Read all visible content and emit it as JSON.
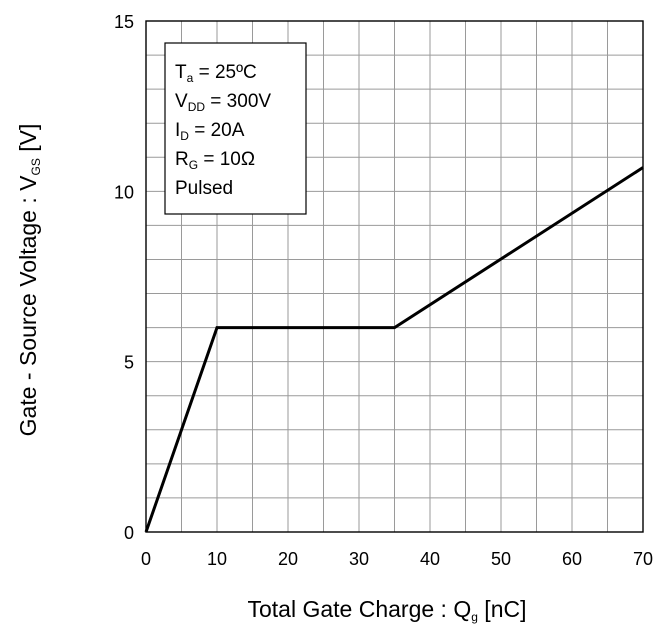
{
  "chart_data": {
    "type": "line",
    "xlabel": {
      "main": "Total Gate Charge : Q",
      "sub": "g",
      "unit": " [nC]"
    },
    "ylabel": {
      "main": "Gate - Source Voltage : V",
      "sub": "GS",
      "unit": " [V]"
    },
    "xlim": [
      0,
      70
    ],
    "ylim": [
      0,
      15
    ],
    "xticks": [
      0,
      10,
      20,
      30,
      40,
      50,
      60,
      70
    ],
    "yticks": [
      0,
      5,
      10,
      15
    ],
    "x_minor_step": 5,
    "y_minor_step": 1,
    "grid": true,
    "legend_placement": "top-left",
    "conditions": [
      {
        "main": "T",
        "sub": "a",
        "rest": " = 25ºC"
      },
      {
        "main": "V",
        "sub": "DD",
        "rest": " = 300V"
      },
      {
        "main": "I",
        "sub": "D",
        "rest": " = 20A"
      },
      {
        "main": "R",
        "sub": "G",
        "rest": " = 10Ω"
      },
      {
        "main": "Pulsed",
        "sub": "",
        "rest": ""
      }
    ],
    "series": [
      {
        "x": [
          0,
          10,
          35,
          70
        ],
        "y": [
          0,
          6,
          6,
          10.7
        ]
      }
    ]
  },
  "colors": {
    "line": "#000000",
    "grid": "#9a9a9a",
    "background": "#ffffff"
  }
}
